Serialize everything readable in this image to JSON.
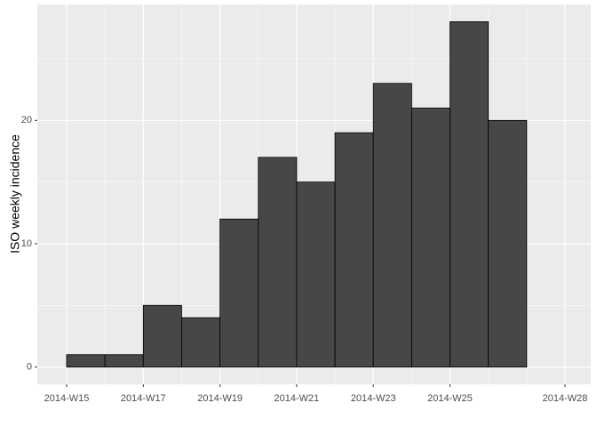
{
  "chart_data": {
    "type": "histogram",
    "y_label": "ISO weekly incidence",
    "bins": [
      "2014-W15",
      null,
      "2014-W17",
      null,
      "2014-W19",
      null,
      "2014-W21",
      null,
      "2014-W23",
      null,
      "2014-W25",
      null,
      null,
      "2014-W28"
    ],
    "values": [
      1,
      1,
      5,
      4,
      12,
      17,
      15,
      19,
      23,
      21,
      28,
      20,
      0
    ],
    "color": "#474747",
    "ylim": [
      -1.4,
      29.4
    ],
    "yticks": [
      0,
      10,
      20
    ],
    "grid": true
  }
}
